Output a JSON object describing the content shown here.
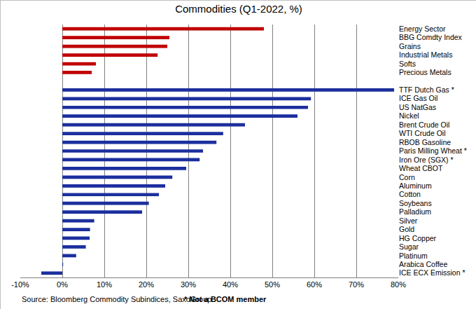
{
  "chart_data": {
    "type": "bar",
    "title": "Commodities (Q1-2022, %)",
    "orientation": "horizontal",
    "categories": [
      "Energy Sector",
      "BBG Comdty Index",
      "Grains",
      "Industrial Metals",
      "Softs",
      "Precious Metals",
      null,
      "TTF Dutch Gas *",
      "ICE Gas Oil",
      "US NatGas",
      "Nickel",
      "Brent Crude Oil",
      "WTI Crude Oil",
      "RBOB Gasoline",
      "Paris Milling Wheat *",
      "Iron Ore (SGX) *",
      "Wheat CBOT",
      "Corn",
      "Aluminum",
      "Cotton",
      "Soybeans",
      "Palladium",
      "Silver",
      "Gold",
      "HG Copper",
      "Sugar",
      "Platinum",
      "Arabica Coffee",
      "ICE ECX Emission *"
    ],
    "values": [
      48,
      25.5,
      25,
      22.7,
      8,
      7,
      null,
      79,
      59.2,
      58.5,
      56,
      43.5,
      38.3,
      36.7,
      33.5,
      32.7,
      29.5,
      26.2,
      24.5,
      23,
      20.6,
      19,
      7.6,
      6.6,
      6.5,
      5.6,
      3.3,
      0.2,
      -5
    ],
    "colors": [
      "#c00000",
      "#c00000",
      "#c00000",
      "#c00000",
      "#c00000",
      "#c00000",
      null,
      "#1c2f9e",
      "#1c2f9e",
      "#1c2f9e",
      "#1c2f9e",
      "#1c2f9e",
      "#1c2f9e",
      "#1c2f9e",
      "#1c2f9e",
      "#1c2f9e",
      "#1c2f9e",
      "#1c2f9e",
      "#1c2f9e",
      "#1c2f9e",
      "#1c2f9e",
      "#1c2f9e",
      "#1c2f9e",
      "#1c2f9e",
      "#1c2f9e",
      "#1c2f9e",
      "#1c2f9e",
      "#1c2f9e",
      "#1c2f9e"
    ],
    "xlim": [
      -10,
      80
    ],
    "xticks": [
      {
        "value": -10,
        "label": "-10%"
      },
      {
        "value": 0,
        "label": "0%"
      },
      {
        "value": 10,
        "label": "10%"
      },
      {
        "value": 20,
        "label": "20%"
      },
      {
        "value": 30,
        "label": "30%"
      },
      {
        "value": 40,
        "label": "40%"
      },
      {
        "value": 50,
        "label": "50%"
      },
      {
        "value": 60,
        "label": "60%"
      },
      {
        "value": 70,
        "label": "70%"
      },
      {
        "value": 80,
        "label": "80%"
      }
    ],
    "grid": true,
    "annotations": [
      "Source: Bloomberg Commodity Subindices, SaxoGroup",
      "* Not a BCOM member"
    ]
  }
}
